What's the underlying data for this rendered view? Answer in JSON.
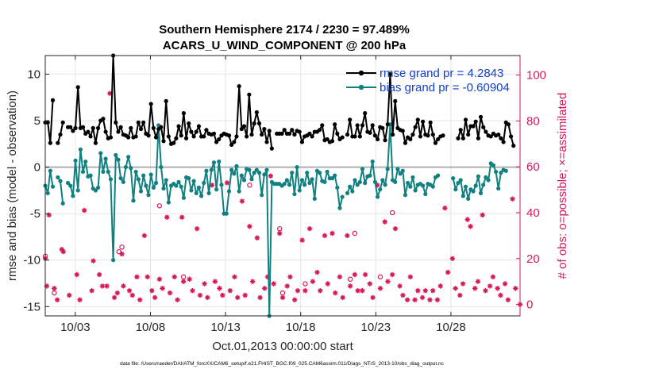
{
  "chart_data": {
    "type": "line",
    "title_line1": "Southern Hemisphere 2174 / 2230 = 97.489%",
    "title_line2": "ACARS_U_WIND_COMPONENT @ 200 hPa",
    "xlabel": "Oct.01,2013 00:00:00 start",
    "ylabel_left": "rmse and bias (model - observation)",
    "ylabel_right": "# of obs: o=possible; ×=assimilated",
    "footer": "data file: /Users/raeder/DAI/ATM_forcXX/CAM6_setup/f.e21.FHIST_BGC.f09_025.CAM6assim.011/Diags_NTrS_2013-10/obs_diag_output.nc",
    "xlim": [
      1.0,
      32.6
    ],
    "ylim_left": [
      -16,
      12
    ],
    "ylim_right": [
      -5,
      108.5
    ],
    "x_ticks": [
      3,
      8,
      13,
      18,
      23,
      28
    ],
    "x_tick_labels": [
      "10/03",
      "10/08",
      "10/13",
      "10/18",
      "10/23",
      "10/28"
    ],
    "y_left_ticks": [
      -15,
      -10,
      -5,
      0,
      5,
      10
    ],
    "y_left_tick_labels": [
      "-15",
      "-10",
      "-5",
      "0",
      "5",
      "10"
    ],
    "y_right_ticks": [
      0,
      20,
      40,
      60,
      80,
      100
    ],
    "y_right_tick_labels": [
      "0",
      "20",
      "40",
      "60",
      "80",
      "100"
    ],
    "legend_location": "top-right",
    "colors": {
      "rmse": "#000000",
      "bias": "#108080",
      "obs": "#d6175a",
      "legend_text": "#1240d0",
      "zero_line": "#b0b0b0"
    },
    "series": [
      {
        "name": "rmse grand pr = 4.2843",
        "color": "#000000",
        "values": [
          4.8,
          4.8,
          2.6,
          7.2,
          null,
          2.6,
          3.5,
          4.8,
          null,
          4.3,
          4.3,
          3.9,
          4.2,
          8.6,
          4.2,
          4.3,
          3.6,
          3.8,
          3.3,
          4.2,
          2.6,
          4.2,
          5.0,
          5.2,
          3.8,
          3.1,
          3.2,
          12.0,
          4.8,
          3.8,
          4.3,
          3.5,
          3.4,
          3.2,
          4.2,
          3.2,
          3.3,
          4.8,
          4.1,
          4.8,
          3.6,
          3.4,
          6.8,
          4.2,
          3.2,
          4.1,
          4.3,
          2.8,
          7.1,
          3.3,
          2.5,
          2.6,
          3.1,
          4.4,
          3.4,
          5.8,
          3.1,
          4.7,
          3.8,
          3.3,
          3.8,
          4.4,
          3.3,
          3.3,
          4.0,
          3.6,
          3.5,
          3.6,
          2.7,
          3.0,
          3.4,
          3.6,
          3.5,
          3.4,
          2.4,
          2.7,
          3.3,
          8.7,
          4.1,
          4.4,
          3.3,
          7.8,
          3.5,
          4.7,
          5.9,
          4.7,
          3.5,
          4.1,
          2.7,
          3.9,
          2.0,
          null,
          3.6,
          3.6,
          3.6,
          4.0,
          3.6,
          3.6,
          4.0,
          3.5,
          3.9,
          3.8,
          2.7,
          3.3,
          3.4,
          3.6,
          3.3,
          3.8,
          3.8,
          4.0,
          4.5,
          2.9,
          3.0,
          2.7,
          2.8,
          4.6,
          3.6,
          3.0,
          3.2,
          null,
          3.5,
          5.1,
          3.3,
          3.3,
          4.5,
          3.3,
          4.5,
          5.8,
          3.8,
          3.7,
          4.5,
          3.4,
          3.0,
          4.3,
          4.2,
          2.9,
          4.6,
          10.0,
          3.5,
          7.1,
          4.2,
          4.0,
          3.9,
          2.6,
          3.2,
          3.0,
          3.5,
          4.3,
          5.1,
          3.3,
          4.9,
          3.5,
          3.4,
          4.8,
          3.5,
          2.6,
          3.0,
          3.3,
          3.4,
          null,
          null,
          null,
          null,
          null,
          3.1,
          4.0,
          3.1,
          5.1,
          3.5,
          4.4,
          4.4,
          4.9,
          3.1,
          5.4,
          4.3,
          3.8,
          3.4,
          3.3,
          3.6,
          3.4,
          3.5,
          3.1,
          2.7,
          4.8,
          4.6,
          3.3,
          2.3,
          null,
          null
        ]
      },
      {
        "name": "bias grand pr = -0.60904",
        "color": "#108080",
        "values": [
          -2.0,
          -2.8,
          -0.4,
          -2.1,
          null,
          -1.1,
          -1.5,
          -3.9,
          null,
          -1.7,
          -2.0,
          -3.1,
          0.7,
          -2.5,
          1.9,
          -0.5,
          0.6,
          -1.0,
          -0.9,
          -2.3,
          -2.5,
          -2.2,
          1.5,
          -0.5,
          0.9,
          -0.5,
          -1.3,
          -10.0,
          1.3,
          0.8,
          -1.2,
          -1.6,
          0.0,
          1.1,
          -0.1,
          -3.6,
          -0.5,
          -1.3,
          -2.6,
          -0.9,
          -2.0,
          -3.0,
          -0.8,
          -2.2,
          -1.7,
          4.5,
          0.0,
          -2.3,
          -1.4,
          -3.8,
          -2.0,
          -1.8,
          -2.0,
          -1.6,
          -2.1,
          -3.3,
          -1.1,
          -1.2,
          -2.5,
          -1.5,
          -2.8,
          -2.2,
          -3.1,
          -1.7,
          -0.4,
          -2.8,
          -0.3,
          0.5,
          -2.4,
          0.6,
          -1.9,
          -5.0,
          -5.0,
          -2.6,
          -0.3,
          -0.7,
          0.1,
          -2.6,
          -0.9,
          -1.4,
          -0.2,
          -0.3,
          -1.3,
          -0.6,
          -0.3,
          -0.6,
          -3.0,
          -0.8,
          -0.3,
          -16.0,
          -1.6,
          -1.8,
          -1.8,
          -1.8,
          -2.0,
          -1.8,
          -1.4,
          -1.9,
          -0.6,
          -2.9,
          0.0,
          -2.5,
          -1.4,
          -1.9,
          -0.6,
          -1.7,
          -1.3,
          -3.4,
          -0.4,
          -0.6,
          -1.5,
          -1.6,
          -0.5,
          -1.2,
          -1.2,
          -0.9,
          -2.2,
          -4.4,
          -3.2,
          null,
          -2.8,
          -2.1,
          -2.6,
          -1.4,
          -1.9,
          -1.6,
          -0.2,
          -1.7,
          -1.0,
          -0.9,
          0.6,
          -1.6,
          -3.2,
          -2.4,
          -1.4,
          -1.9,
          -0.2,
          4.6,
          -1.4,
          -1.6,
          -0.2,
          -0.7,
          -0.4,
          -3.0,
          -1.7,
          -2.1,
          -1.1,
          -2.5,
          -1.9,
          -1.8,
          -2.0,
          -2.9,
          -1.8,
          -1.9,
          -2.1,
          -1.1,
          -0.9,
          null,
          null,
          null,
          null,
          null,
          -1.2,
          -2.4,
          -1.7,
          -1.4,
          -3.1,
          -2.1,
          -3.4,
          -2.4,
          -2.6,
          -2.0,
          -1.0,
          -2.8,
          -1.9,
          -1.1,
          -1.4,
          0.4,
          0.2,
          -0.5,
          -2.3,
          -0.6,
          -0.3,
          -0.4,
          null,
          null
        ]
      }
    ],
    "obs_assimilated": [
      {
        "x": 1.0,
        "v": 20
      },
      {
        "x": 1.1,
        "v": 8
      },
      {
        "x": 1.25,
        "v": 39
      },
      {
        "x": 1.6,
        "v": 7
      },
      {
        "x": 1.8,
        "v": 2
      },
      {
        "x": 2.1,
        "v": 24
      },
      {
        "x": 2.2,
        "v": 23
      },
      {
        "x": 2.6,
        "v": 4
      },
      {
        "x": 3.1,
        "v": 13
      },
      {
        "x": 3.3,
        "v": 2
      },
      {
        "x": 3.6,
        "v": 41
      },
      {
        "x": 4.1,
        "v": 6
      },
      {
        "x": 4.2,
        "v": 19
      },
      {
        "x": 4.6,
        "v": 13
      },
      {
        "x": 4.8,
        "v": 8
      },
      {
        "x": 5.1,
        "v": 8
      },
      {
        "x": 5.3,
        "v": 92
      },
      {
        "x": 5.6,
        "v": 3
      },
      {
        "x": 5.8,
        "v": 5
      },
      {
        "x": 6.1,
        "v": 22
      },
      {
        "x": 6.2,
        "v": 8
      },
      {
        "x": 6.6,
        "v": 6
      },
      {
        "x": 6.8,
        "v": 4
      },
      {
        "x": 7.1,
        "v": 12
      },
      {
        "x": 7.3,
        "v": 2
      },
      {
        "x": 7.6,
        "v": 30
      },
      {
        "x": 7.8,
        "v": 12
      },
      {
        "x": 8.1,
        "v": 6
      },
      {
        "x": 8.3,
        "v": 3
      },
      {
        "x": 8.6,
        "v": 11
      },
      {
        "x": 8.8,
        "v": 7
      },
      {
        "x": 9.1,
        "v": 38
      },
      {
        "x": 9.3,
        "v": 5
      },
      {
        "x": 9.6,
        "v": 12
      },
      {
        "x": 9.8,
        "v": 2
      },
      {
        "x": 10.1,
        "v": 38
      },
      {
        "x": 10.2,
        "v": 10
      },
      {
        "x": 10.6,
        "v": 11
      },
      {
        "x": 10.8,
        "v": 6
      },
      {
        "x": 11.1,
        "v": 33
      },
      {
        "x": 11.3,
        "v": 4
      },
      {
        "x": 11.6,
        "v": 9
      },
      {
        "x": 11.8,
        "v": 3
      },
      {
        "x": 12.1,
        "v": 52
      },
      {
        "x": 12.3,
        "v": 10
      },
      {
        "x": 12.6,
        "v": 7
      },
      {
        "x": 12.8,
        "v": 4
      },
      {
        "x": 13.1,
        "v": 53
      },
      {
        "x": 13.3,
        "v": 6
      },
      {
        "x": 13.6,
        "v": 12
      },
      {
        "x": 13.8,
        "v": 3
      },
      {
        "x": 14.1,
        "v": 45
      },
      {
        "x": 14.3,
        "v": 4
      },
      {
        "x": 14.6,
        "v": 34
      },
      {
        "x": 14.8,
        "v": 10
      },
      {
        "x": 15.1,
        "v": 29
      },
      {
        "x": 15.3,
        "v": 3
      },
      {
        "x": 15.6,
        "v": 7
      },
      {
        "x": 15.8,
        "v": 12
      },
      {
        "x": 16.0,
        "v": 56
      },
      {
        "x": 16.2,
        "v": 9
      },
      {
        "x": 16.6,
        "v": 31
      },
      {
        "x": 16.8,
        "v": 3
      },
      {
        "x": 17.1,
        "v": 8
      },
      {
        "x": 17.3,
        "v": 12
      },
      {
        "x": 17.6,
        "v": 2
      },
      {
        "x": 17.8,
        "v": 6
      },
      {
        "x": 18.1,
        "v": 28
      },
      {
        "x": 18.3,
        "v": 6
      },
      {
        "x": 18.6,
        "v": 33
      },
      {
        "x": 18.8,
        "v": 10
      },
      {
        "x": 19.1,
        "v": 14
      },
      {
        "x": 19.3,
        "v": 6
      },
      {
        "x": 19.6,
        "v": 30
      },
      {
        "x": 19.8,
        "v": 9
      },
      {
        "x": 20.1,
        "v": 31
      },
      {
        "x": 20.3,
        "v": 5
      },
      {
        "x": 20.6,
        "v": 12
      },
      {
        "x": 20.8,
        "v": 3
      },
      {
        "x": 21.1,
        "v": 30
      },
      {
        "x": 21.3,
        "v": 8
      },
      {
        "x": 21.6,
        "v": 13
      },
      {
        "x": 21.8,
        "v": 6
      },
      {
        "x": 22.1,
        "v": 6
      },
      {
        "x": 22.3,
        "v": 13
      },
      {
        "x": 22.6,
        "v": 9
      },
      {
        "x": 22.8,
        "v": 3
      },
      {
        "x": 23.1,
        "v": 52
      },
      {
        "x": 23.3,
        "v": 7
      },
      {
        "x": 23.6,
        "v": 36
      },
      {
        "x": 23.8,
        "v": 10
      },
      {
        "x": 24.1,
        "v": 13
      },
      {
        "x": 24.3,
        "v": 33
      },
      {
        "x": 24.6,
        "v": 8
      },
      {
        "x": 24.8,
        "v": 4
      },
      {
        "x": 25.1,
        "v": 2
      },
      {
        "x": 25.3,
        "v": 12
      },
      {
        "x": 25.6,
        "v": 2
      },
      {
        "x": 25.8,
        "v": 6
      },
      {
        "x": 26.1,
        "v": 3
      },
      {
        "x": 26.3,
        "v": 6
      },
      {
        "x": 26.6,
        "v": 2
      },
      {
        "x": 26.8,
        "v": 6
      },
      {
        "x": 27.1,
        "v": 2
      },
      {
        "x": 27.3,
        "v": 8
      },
      {
        "x": 27.6,
        "v": 42
      },
      {
        "x": 27.8,
        "v": 14
      },
      {
        "x": 28.1,
        "v": 20
      },
      {
        "x": 28.3,
        "v": 7
      },
      {
        "x": 28.6,
        "v": 4
      },
      {
        "x": 28.8,
        "v": 9
      },
      {
        "x": 29.1,
        "v": 37
      },
      {
        "x": 29.3,
        "v": 34
      },
      {
        "x": 29.6,
        "v": 7
      },
      {
        "x": 29.8,
        "v": 10
      },
      {
        "x": 30.1,
        "v": 39
      },
      {
        "x": 30.3,
        "v": 6
      },
      {
        "x": 30.6,
        "v": 8
      },
      {
        "x": 30.8,
        "v": 12
      },
      {
        "x": 31.1,
        "v": 7
      },
      {
        "x": 31.3,
        "v": 4
      },
      {
        "x": 31.6,
        "v": 9
      },
      {
        "x": 31.8,
        "v": 2
      },
      {
        "x": 32.1,
        "v": 46
      },
      {
        "x": 32.3,
        "v": 7
      },
      {
        "x": 32.6,
        "v": 0
      }
    ],
    "obs_possible_only": [
      {
        "x": 1.0,
        "v": 21
      },
      {
        "x": 1.6,
        "v": 5
      },
      {
        "x": 5.9,
        "v": 23
      },
      {
        "x": 6.1,
        "v": 25
      },
      {
        "x": 8.6,
        "v": 43
      },
      {
        "x": 10.2,
        "v": 12
      },
      {
        "x": 14.6,
        "v": 52
      },
      {
        "x": 16.6,
        "v": 33
      },
      {
        "x": 16.8,
        "v": 5
      },
      {
        "x": 18.3,
        "v": 9
      },
      {
        "x": 21.3,
        "v": 11
      },
      {
        "x": 21.6,
        "v": 31
      },
      {
        "x": 23.3,
        "v": 12
      },
      {
        "x": 24.1,
        "v": 40
      }
    ]
  }
}
